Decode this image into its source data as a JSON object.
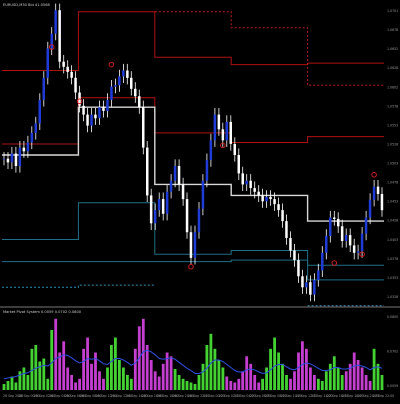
{
  "window": {
    "main_title": "EURUSD,M30 Bid 41.0568",
    "indicator_title": "Market Pivot System 0.0059 0.0702 0.0800"
  },
  "colors": {
    "background": "#000000",
    "wick": "#ffffff",
    "body": "#1f3bd8",
    "resistance": "#b01212",
    "resistance_dotted": "#c31b1b",
    "pivot": "#d8d8d8",
    "support": "#1f6f86",
    "support_dotted": "#2f92b6",
    "marker": "#e02020",
    "hist_up": "#44d233",
    "hist_down": "#c43ecf",
    "signal": "#2d4fe0",
    "separator": "#a0a0a0",
    "axis_label": "#9a9a9a"
  },
  "chart_data": [
    {
      "type": "candlestick",
      "title": "EURUSD,M30 Bid 41.0568",
      "ylim": [
        1.0305,
        1.0705
      ],
      "price_axis": [
        "1.0701",
        "1.0678",
        "1.0652",
        "1.0628",
        "1.0602",
        "1.0578",
        "1.0553",
        "1.0528",
        "1.0503",
        "1.0478",
        "1.0453",
        "1.0428",
        "1.0403",
        "1.0378",
        "1.0353",
        "1.0328"
      ],
      "time_axis": [
        "26 Sep 2020",
        "26 Sep 00:00",
        "26 Sep 02:00",
        "26 Sep 04:00",
        "26 Sep 06:00",
        "26 Sep 08:00",
        "26 Sep 10:00",
        "26 Sep 12:00",
        "26 Sep 14:00",
        "26 Sep 16:00",
        "26 Sep 18:00",
        "26 Sep 20:00",
        "26 Sep 22:00",
        "27 Sep 00:00",
        "27 Sep 02:00",
        "27 Sep 04:00",
        "27 Sep 06:00",
        "27 Sep 08:00",
        "27 Sep 10:00",
        "27 Sep 12:00",
        "27 Sep 14:00",
        "27 Sep 16:00",
        "27 Sep 18:00",
        "27 Sep 20:00",
        "27 Sep 22:00"
      ],
      "close_series": [
        1.05,
        1.0495,
        1.0507,
        1.049,
        1.0515,
        1.051,
        1.0522,
        1.0535,
        1.0548,
        1.058,
        1.061,
        1.065,
        1.067,
        1.0702,
        1.0632,
        1.0625,
        1.0618,
        1.061,
        1.059,
        1.0572,
        1.056,
        1.0545,
        1.056,
        1.0555,
        1.057,
        1.0565,
        1.058,
        1.0598,
        1.06,
        1.0612,
        1.062,
        1.061,
        1.0595,
        1.0585,
        1.057,
        1.0515,
        1.045,
        1.0412,
        1.043,
        1.0445,
        1.0425,
        1.0455,
        1.047,
        1.049,
        1.0465,
        1.0445,
        1.04,
        1.0365,
        1.04,
        1.0432,
        1.047,
        1.0498,
        1.0525,
        1.056,
        1.054,
        1.0525,
        1.055,
        1.052,
        1.0505,
        1.048,
        1.0465,
        1.047,
        1.046,
        1.0455,
        1.045,
        1.0442,
        1.0448,
        1.0445,
        1.0438,
        1.043,
        1.0415,
        1.0392,
        1.0375,
        1.0362,
        1.034,
        1.0325,
        1.0332,
        1.0315,
        1.0335,
        1.0348,
        1.0372,
        1.0395,
        1.042,
        1.0418,
        1.0408,
        1.0388,
        1.0396,
        1.0382,
        1.0372,
        1.0374,
        1.0398,
        1.042,
        1.0444,
        1.0462,
        1.0452,
        1.043
      ],
      "levels": [
        {
          "name": "R2",
          "role": "resistance",
          "style": "solid",
          "values": [
            1.062,
            1.07,
            1.0638,
            1.0628,
            1.063
          ]
        },
        {
          "name": "R1",
          "role": "resistance",
          "style": "solid",
          "values": [
            1.052,
            1.0583,
            1.0535,
            1.0522,
            1.053
          ]
        },
        {
          "name": "P",
          "role": "pivot",
          "style": "solid",
          "values": [
            1.0505,
            1.057,
            1.0465,
            1.045,
            1.0415
          ]
        },
        {
          "name": "S1",
          "role": "support",
          "style": "solid",
          "values": [
            1.039,
            1.044,
            1.037,
            1.0375,
            1.0355
          ]
        },
        {
          "name": "S2",
          "role": "support",
          "style": "solid",
          "values": [
            1.036,
            1.036,
            1.036,
            1.0362,
            1.0335
          ]
        },
        {
          "name": "R3",
          "role": "resistance",
          "style": "dotted",
          "values": [
            null,
            null,
            1.07,
            1.0678,
            1.06
          ]
        },
        {
          "name": "S3",
          "role": "support",
          "style": "dotted",
          "values": [
            1.0325,
            1.0328,
            null,
            null,
            1.03
          ]
        }
      ],
      "markers": [
        {
          "index": 12,
          "value": 1.0652
        },
        {
          "index": 27,
          "value": 1.0628
        },
        {
          "index": 19,
          "value": 1.0578
        },
        {
          "index": 47,
          "value": 1.0353
        },
        {
          "index": 55,
          "value": 1.0518
        },
        {
          "index": 83,
          "value": 1.0358
        },
        {
          "index": 90,
          "value": 1.037
        },
        {
          "index": 93,
          "value": 1.0478
        }
      ]
    },
    {
      "type": "bar",
      "title": "Market Pivot System 0.0059 0.0702 0.0800",
      "ylim": [
        0,
        1
      ],
      "values": [
        0.08,
        0.12,
        0.18,
        0.1,
        0.25,
        0.3,
        0.2,
        0.55,
        0.6,
        0.38,
        0.42,
        0.15,
        0.8,
        0.95,
        0.5,
        0.65,
        0.3,
        0.2,
        0.1,
        0.15,
        0.55,
        0.7,
        0.35,
        0.5,
        0.25,
        0.15,
        0.3,
        0.6,
        0.7,
        0.4,
        0.3,
        0.2,
        0.15,
        0.55,
        0.85,
        0.95,
        0.6,
        0.4,
        0.25,
        0.18,
        0.35,
        0.5,
        0.45,
        0.28,
        0.2,
        0.15,
        0.12,
        0.1,
        0.08,
        0.2,
        0.35,
        0.6,
        0.75,
        0.55,
        0.4,
        0.3,
        0.18,
        0.12,
        0.1,
        0.15,
        0.25,
        0.45,
        0.35,
        0.2,
        0.1,
        0.15,
        0.3,
        0.55,
        0.7,
        0.5,
        0.35,
        0.2,
        0.15,
        0.25,
        0.5,
        0.65,
        0.55,
        0.3,
        0.2,
        0.15,
        0.12,
        0.25,
        0.35,
        0.45,
        0.3,
        0.2,
        0.25,
        0.35,
        0.5,
        0.4,
        0.3,
        0.2,
        0.12,
        0.55,
        0.35,
        0.2
      ],
      "direction": [
        "up",
        "up",
        "up",
        "up",
        "up",
        "up",
        "up",
        "up",
        "up",
        "up",
        "up",
        "up",
        "up",
        "down",
        "down",
        "down",
        "down",
        "down",
        "down",
        "down",
        "down",
        "down",
        "down",
        "down",
        "down",
        "down",
        "up",
        "up",
        "up",
        "up",
        "up",
        "up",
        "up",
        "down",
        "down",
        "down",
        "down",
        "down",
        "down",
        "down",
        "down",
        "down",
        "down",
        "up",
        "up",
        "up",
        "up",
        "up",
        "up",
        "up",
        "up",
        "up",
        "up",
        "up",
        "up",
        "up",
        "down",
        "down",
        "down",
        "down",
        "down",
        "down",
        "down",
        "down",
        "down",
        "up",
        "up",
        "up",
        "up",
        "up",
        "up",
        "up",
        "down",
        "down",
        "down",
        "down",
        "down",
        "down",
        "down",
        "up",
        "up",
        "up",
        "up",
        "up",
        "up",
        "up",
        "down",
        "down",
        "down",
        "down",
        "down",
        "down",
        "down",
        "up",
        "up",
        "up"
      ],
      "signal": [
        0.15,
        0.16,
        0.17,
        0.18,
        0.2,
        0.22,
        0.23,
        0.26,
        0.29,
        0.31,
        0.33,
        0.32,
        0.36,
        0.42,
        0.44,
        0.47,
        0.46,
        0.43,
        0.39,
        0.36,
        0.38,
        0.42,
        0.41,
        0.42,
        0.39,
        0.35,
        0.34,
        0.38,
        0.42,
        0.42,
        0.4,
        0.37,
        0.33,
        0.36,
        0.43,
        0.51,
        0.53,
        0.51,
        0.47,
        0.42,
        0.41,
        0.42,
        0.43,
        0.41,
        0.37,
        0.33,
        0.29,
        0.26,
        0.22,
        0.22,
        0.24,
        0.29,
        0.36,
        0.4,
        0.4,
        0.38,
        0.34,
        0.3,
        0.26,
        0.24,
        0.24,
        0.27,
        0.28,
        0.27,
        0.24,
        0.22,
        0.23,
        0.27,
        0.32,
        0.34,
        0.34,
        0.31,
        0.28,
        0.27,
        0.3,
        0.34,
        0.36,
        0.35,
        0.32,
        0.29,
        0.26,
        0.26,
        0.27,
        0.3,
        0.3,
        0.28,
        0.28,
        0.29,
        0.32,
        0.33,
        0.32,
        0.3,
        0.27,
        0.3,
        0.31,
        0.29
      ],
      "price_axis": [
        "0.0800",
        "0.0702",
        "0.0059"
      ]
    }
  ]
}
